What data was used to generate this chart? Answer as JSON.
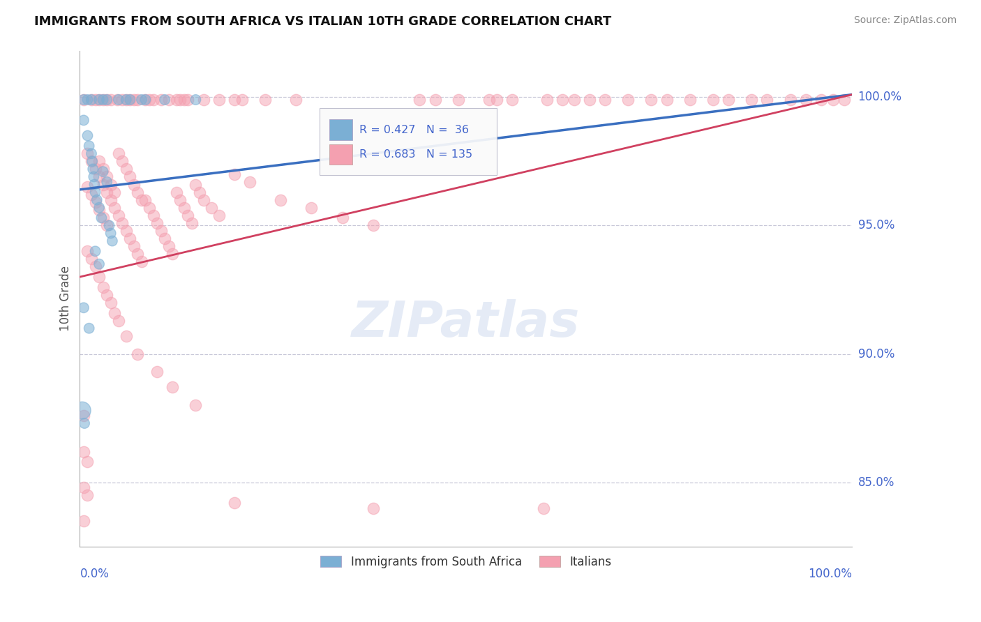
{
  "title": "IMMIGRANTS FROM SOUTH AFRICA VS ITALIAN 10TH GRADE CORRELATION CHART",
  "source": "Source: ZipAtlas.com",
  "ylabel": "10th Grade",
  "yticks": [
    0.85,
    0.9,
    0.95,
    1.0
  ],
  "ytick_labels": [
    "85.0%",
    "90.0%",
    "95.0%",
    "100.0%"
  ],
  "xlim": [
    0.0,
    1.0
  ],
  "ylim": [
    0.825,
    1.018
  ],
  "blue_R": 0.427,
  "blue_N": 36,
  "pink_R": 0.683,
  "pink_N": 135,
  "blue_color": "#7BAFD4",
  "pink_color": "#F4A0B0",
  "blue_line_color": "#3A6FC0",
  "pink_line_color": "#D04060",
  "tick_label_color": "#4466CC",
  "background_color": "#FFFFFF",
  "blue_line": [
    0.0,
    0.964,
    1.0,
    1.001
  ],
  "pink_line": [
    0.0,
    0.93,
    1.0,
    1.001
  ],
  "blue_points": [
    [
      0.005,
      0.999
    ],
    [
      0.01,
      0.999
    ],
    [
      0.015,
      0.999
    ],
    [
      0.025,
      0.999
    ],
    [
      0.03,
      0.999
    ],
    [
      0.035,
      0.999
    ],
    [
      0.05,
      0.999
    ],
    [
      0.06,
      0.999
    ],
    [
      0.065,
      0.999
    ],
    [
      0.08,
      0.999
    ],
    [
      0.085,
      0.999
    ],
    [
      0.11,
      0.999
    ],
    [
      0.15,
      0.999
    ],
    [
      0.005,
      0.991
    ],
    [
      0.01,
      0.985
    ],
    [
      0.012,
      0.981
    ],
    [
      0.015,
      0.978
    ],
    [
      0.016,
      0.975
    ],
    [
      0.017,
      0.972
    ],
    [
      0.018,
      0.969
    ],
    [
      0.019,
      0.966
    ],
    [
      0.02,
      0.963
    ],
    [
      0.022,
      0.96
    ],
    [
      0.025,
      0.957
    ],
    [
      0.028,
      0.953
    ],
    [
      0.03,
      0.971
    ],
    [
      0.035,
      0.967
    ],
    [
      0.038,
      0.95
    ],
    [
      0.04,
      0.947
    ],
    [
      0.042,
      0.944
    ],
    [
      0.02,
      0.94
    ],
    [
      0.025,
      0.935
    ],
    [
      0.005,
      0.918
    ],
    [
      0.012,
      0.91
    ],
    [
      0.003,
      0.878
    ],
    [
      0.006,
      0.873
    ]
  ],
  "blue_sizes": [
    110,
    110,
    110,
    110,
    110,
    110,
    110,
    110,
    110,
    110,
    110,
    110,
    110,
    110,
    110,
    110,
    110,
    110,
    110,
    110,
    110,
    110,
    110,
    110,
    110,
    110,
    110,
    110,
    110,
    110,
    110,
    110,
    110,
    110,
    320,
    110
  ],
  "pink_points": [
    [
      0.005,
      0.999
    ],
    [
      0.015,
      0.999
    ],
    [
      0.02,
      0.999
    ],
    [
      0.025,
      0.999
    ],
    [
      0.03,
      0.999
    ],
    [
      0.035,
      0.999
    ],
    [
      0.04,
      0.999
    ],
    [
      0.048,
      0.999
    ],
    [
      0.055,
      0.999
    ],
    [
      0.06,
      0.999
    ],
    [
      0.065,
      0.999
    ],
    [
      0.07,
      0.999
    ],
    [
      0.075,
      0.999
    ],
    [
      0.085,
      0.999
    ],
    [
      0.09,
      0.999
    ],
    [
      0.095,
      0.999
    ],
    [
      0.105,
      0.999
    ],
    [
      0.115,
      0.999
    ],
    [
      0.125,
      0.999
    ],
    [
      0.13,
      0.999
    ],
    [
      0.135,
      0.999
    ],
    [
      0.14,
      0.999
    ],
    [
      0.16,
      0.999
    ],
    [
      0.18,
      0.999
    ],
    [
      0.2,
      0.999
    ],
    [
      0.21,
      0.999
    ],
    [
      0.24,
      0.999
    ],
    [
      0.28,
      0.999
    ],
    [
      0.44,
      0.999
    ],
    [
      0.46,
      0.999
    ],
    [
      0.49,
      0.999
    ],
    [
      0.53,
      0.999
    ],
    [
      0.54,
      0.999
    ],
    [
      0.56,
      0.999
    ],
    [
      0.605,
      0.999
    ],
    [
      0.625,
      0.999
    ],
    [
      0.64,
      0.999
    ],
    [
      0.66,
      0.999
    ],
    [
      0.68,
      0.999
    ],
    [
      0.71,
      0.999
    ],
    [
      0.74,
      0.999
    ],
    [
      0.76,
      0.999
    ],
    [
      0.79,
      0.999
    ],
    [
      0.82,
      0.999
    ],
    [
      0.84,
      0.999
    ],
    [
      0.87,
      0.999
    ],
    [
      0.89,
      0.999
    ],
    [
      0.92,
      0.999
    ],
    [
      0.94,
      0.999
    ],
    [
      0.96,
      0.999
    ],
    [
      0.975,
      0.999
    ],
    [
      0.99,
      0.999
    ],
    [
      0.01,
      0.978
    ],
    [
      0.015,
      0.975
    ],
    [
      0.02,
      0.972
    ],
    [
      0.025,
      0.969
    ],
    [
      0.03,
      0.966
    ],
    [
      0.035,
      0.963
    ],
    [
      0.04,
      0.96
    ],
    [
      0.045,
      0.957
    ],
    [
      0.05,
      0.954
    ],
    [
      0.055,
      0.951
    ],
    [
      0.06,
      0.948
    ],
    [
      0.065,
      0.945
    ],
    [
      0.07,
      0.942
    ],
    [
      0.075,
      0.939
    ],
    [
      0.08,
      0.936
    ],
    [
      0.085,
      0.96
    ],
    [
      0.09,
      0.957
    ],
    [
      0.095,
      0.954
    ],
    [
      0.1,
      0.951
    ],
    [
      0.105,
      0.948
    ],
    [
      0.11,
      0.945
    ],
    [
      0.115,
      0.942
    ],
    [
      0.12,
      0.939
    ],
    [
      0.125,
      0.963
    ],
    [
      0.13,
      0.96
    ],
    [
      0.135,
      0.957
    ],
    [
      0.14,
      0.954
    ],
    [
      0.145,
      0.951
    ],
    [
      0.15,
      0.966
    ],
    [
      0.155,
      0.963
    ],
    [
      0.16,
      0.96
    ],
    [
      0.17,
      0.957
    ],
    [
      0.18,
      0.954
    ],
    [
      0.025,
      0.975
    ],
    [
      0.03,
      0.972
    ],
    [
      0.035,
      0.969
    ],
    [
      0.04,
      0.966
    ],
    [
      0.045,
      0.963
    ],
    [
      0.05,
      0.978
    ],
    [
      0.055,
      0.975
    ],
    [
      0.06,
      0.972
    ],
    [
      0.065,
      0.969
    ],
    [
      0.07,
      0.966
    ],
    [
      0.075,
      0.963
    ],
    [
      0.08,
      0.96
    ],
    [
      0.01,
      0.965
    ],
    [
      0.015,
      0.962
    ],
    [
      0.02,
      0.959
    ],
    [
      0.025,
      0.956
    ],
    [
      0.03,
      0.953
    ],
    [
      0.035,
      0.95
    ],
    [
      0.2,
      0.97
    ],
    [
      0.22,
      0.967
    ],
    [
      0.26,
      0.96
    ],
    [
      0.3,
      0.957
    ],
    [
      0.34,
      0.953
    ],
    [
      0.38,
      0.95
    ],
    [
      0.01,
      0.94
    ],
    [
      0.015,
      0.937
    ],
    [
      0.02,
      0.934
    ],
    [
      0.025,
      0.93
    ],
    [
      0.03,
      0.926
    ],
    [
      0.035,
      0.923
    ],
    [
      0.04,
      0.92
    ],
    [
      0.045,
      0.916
    ],
    [
      0.05,
      0.913
    ],
    [
      0.06,
      0.907
    ],
    [
      0.075,
      0.9
    ],
    [
      0.1,
      0.893
    ],
    [
      0.12,
      0.887
    ],
    [
      0.15,
      0.88
    ],
    [
      0.005,
      0.876
    ],
    [
      0.005,
      0.862
    ],
    [
      0.01,
      0.858
    ],
    [
      0.005,
      0.848
    ],
    [
      0.01,
      0.845
    ],
    [
      0.2,
      0.842
    ],
    [
      0.38,
      0.84
    ],
    [
      0.005,
      0.835
    ],
    [
      0.6,
      0.84
    ]
  ]
}
